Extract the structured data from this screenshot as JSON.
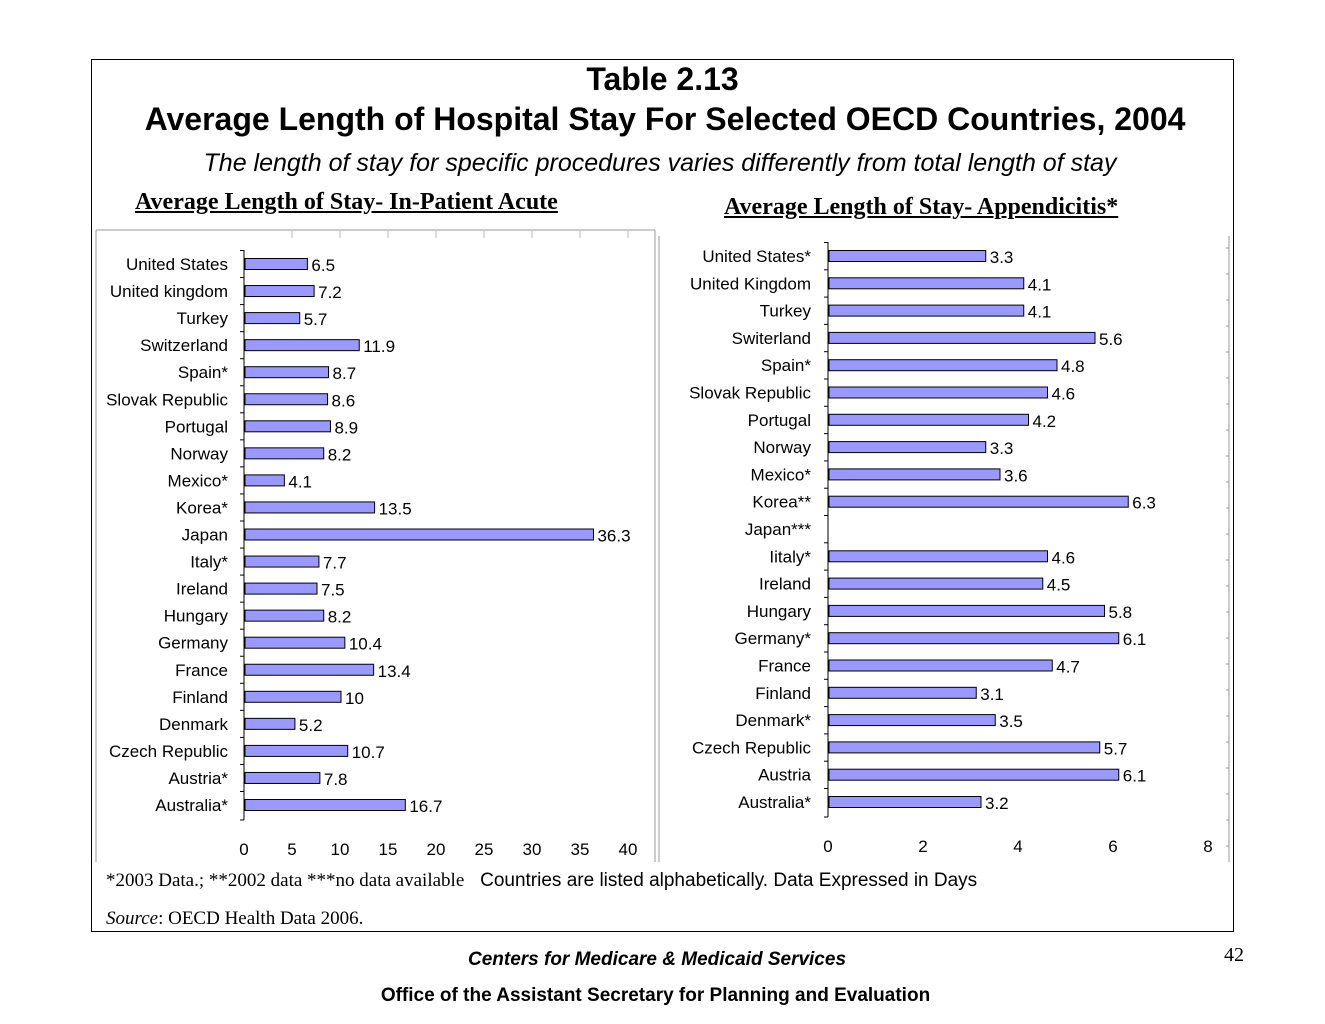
{
  "header": {
    "table_number": "Table  2.13",
    "title": "Average Length of Hospital Stay For Selected OECD Countries, 2004",
    "subtitle": "The length of stay for specific procedures varies differently from total length of stay"
  },
  "chart_data": [
    {
      "type": "bar",
      "orientation": "horizontal",
      "title": "Average Length of Stay- In-Patient Acute",
      "categories": [
        "United States",
        "United kingdom",
        "Turkey",
        "Switzerland",
        "Spain*",
        "Slovak Republic",
        "Portugal",
        "Norway",
        "Mexico*",
        "Korea*",
        "Japan",
        "Italy*",
        "Ireland",
        "Hungary",
        "Germany",
        "France",
        "Finland",
        "Denmark",
        "Czech Republic",
        "Austria*",
        "Australia*"
      ],
      "values": [
        6.5,
        7.2,
        5.7,
        11.9,
        8.7,
        8.6,
        8.9,
        8.2,
        4.1,
        13.5,
        36.3,
        7.7,
        7.5,
        8.2,
        10.4,
        13.4,
        10,
        5.2,
        10.7,
        7.8,
        16.7
      ],
      "value_labels": [
        "6.5",
        "7.2",
        "5.7",
        "11.9",
        "8.7",
        "8.6",
        "8.9",
        "8.2",
        "4.1",
        "13.5",
        "36.3",
        "7.7",
        "7.5",
        "8.2",
        "10.4",
        "13.4",
        "10",
        "5.2",
        "10.7",
        "7.8",
        "16.7"
      ],
      "xlim": [
        0,
        40
      ],
      "xticks": [
        "0",
        "5",
        "10",
        "15",
        "20",
        "25",
        "30",
        "35",
        "40"
      ],
      "grid": "vertical",
      "bar_color": "#9999FF"
    },
    {
      "type": "bar",
      "orientation": "horizontal",
      "title": "Average Length of Stay- Appendicitis*",
      "categories": [
        "United States*",
        "United Kingdom",
        "Turkey",
        "Switerland",
        "Spain*",
        "Slovak Republic",
        "Portugal",
        "Norway",
        "Mexico*",
        "Korea**",
        "Japan***",
        "Iitaly*",
        "Ireland",
        "Hungary",
        "Germany*",
        "France",
        "Finland",
        "Denmark*",
        "Czech Republic",
        "Austria",
        "Australia*"
      ],
      "values": [
        3.3,
        4.1,
        4.1,
        5.6,
        4.8,
        4.6,
        4.2,
        3.3,
        3.6,
        6.3,
        null,
        4.6,
        4.5,
        5.8,
        6.1,
        4.7,
        3.1,
        3.5,
        5.7,
        6.1,
        3.2
      ],
      "value_labels": [
        "3.3",
        "4.1",
        "4.1",
        "5.6",
        "4.8",
        "4.6",
        "4.2",
        "3.3",
        "3.6",
        "6.3",
        "",
        "4.6",
        "4.5",
        "5.8",
        "6.1",
        "4.7",
        "3.1",
        "3.5",
        "5.7",
        "6.1",
        "3.2"
      ],
      "xlim": [
        0,
        8
      ],
      "xticks": [
        "0",
        "2",
        "4",
        "6",
        "8"
      ],
      "grid": "none",
      "bar_color": "#9999FF"
    }
  ],
  "notes": {
    "data_notes": "*2003 Data.; **2002 data ***no data available",
    "listing_note": "Countries are listed alphabetically.  Data Expressed in Days",
    "source_label": "Source",
    "source_text": ": OECD Health Data 2006."
  },
  "footer": {
    "agency": "Centers for Medicare & Medicaid Services",
    "office": "Office of the Assistant Secretary for Planning and Evaluation",
    "page_number": "42"
  }
}
